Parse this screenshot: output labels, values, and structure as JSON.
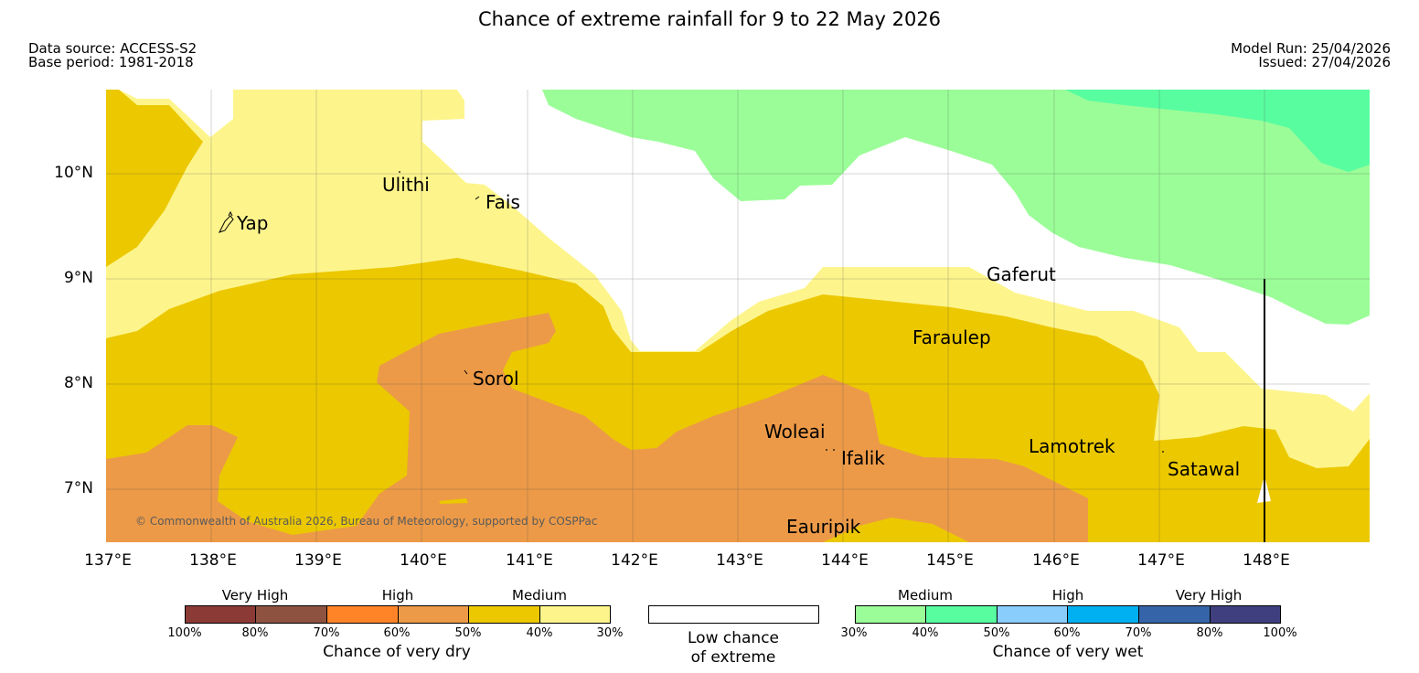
{
  "title": "Chance of extreme rainfall for 9 to 22 May 2026",
  "meta": {
    "data_source": "Data source: ACCESS-S2",
    "base_period": "Base period: 1981-2018",
    "model_run": "Model Run: 25/04/2026",
    "issued": "Issued: 27/04/2026"
  },
  "map": {
    "lat_labels": [
      "10°N",
      "9°N",
      "8°N",
      "7°N"
    ],
    "lon_labels": [
      "137°E",
      "138°E",
      "139°E",
      "140°E",
      "141°E",
      "142°E",
      "143°E",
      "144°E",
      "145°E",
      "146°E",
      "147°E",
      "148°E"
    ],
    "places": [
      "Yap",
      "Ulithi",
      "Fais",
      "Sorol",
      "Gaferut",
      "Faraulep",
      "Woleai",
      "Ifalik",
      "Lamotrek",
      "Satawal",
      "Eauripik"
    ],
    "copyright": "© Commonwealth of Australia 2026, Bureau of Meteorology, supported by COSPPac",
    "colors": {
      "very_high_dry_100": "#8c3a36",
      "very_high_dry_80": "#8e5340",
      "high_dry_70": "#ff8427",
      "high_dry_60": "#ec9a48",
      "medium_dry_50": "#ecc800",
      "medium_dry_40": "#fdf58c",
      "low": "#ffffff",
      "medium_wet_30": "#9bfd98",
      "medium_wet_40": "#58fda0",
      "high_wet_50": "#88cdfb",
      "high_wet_60": "#00b0f0",
      "very_high_wet_70": "#3565a8",
      "very_high_wet_80": "#3f3f7f"
    }
  },
  "legend": {
    "dry": {
      "headings": [
        "Very High",
        "High",
        "Medium"
      ],
      "ticks": [
        "100%",
        "80%",
        "70%",
        "60%",
        "50%",
        "40%",
        "30%"
      ],
      "caption": "Chance of very dry"
    },
    "low": {
      "caption_line1": "Low chance",
      "caption_line2": "of extreme"
    },
    "wet": {
      "headings": [
        "Medium",
        "High",
        "Very High"
      ],
      "ticks": [
        "30%",
        "40%",
        "50%",
        "60%",
        "70%",
        "80%",
        "100%"
      ],
      "caption": "Chance of very wet"
    }
  }
}
